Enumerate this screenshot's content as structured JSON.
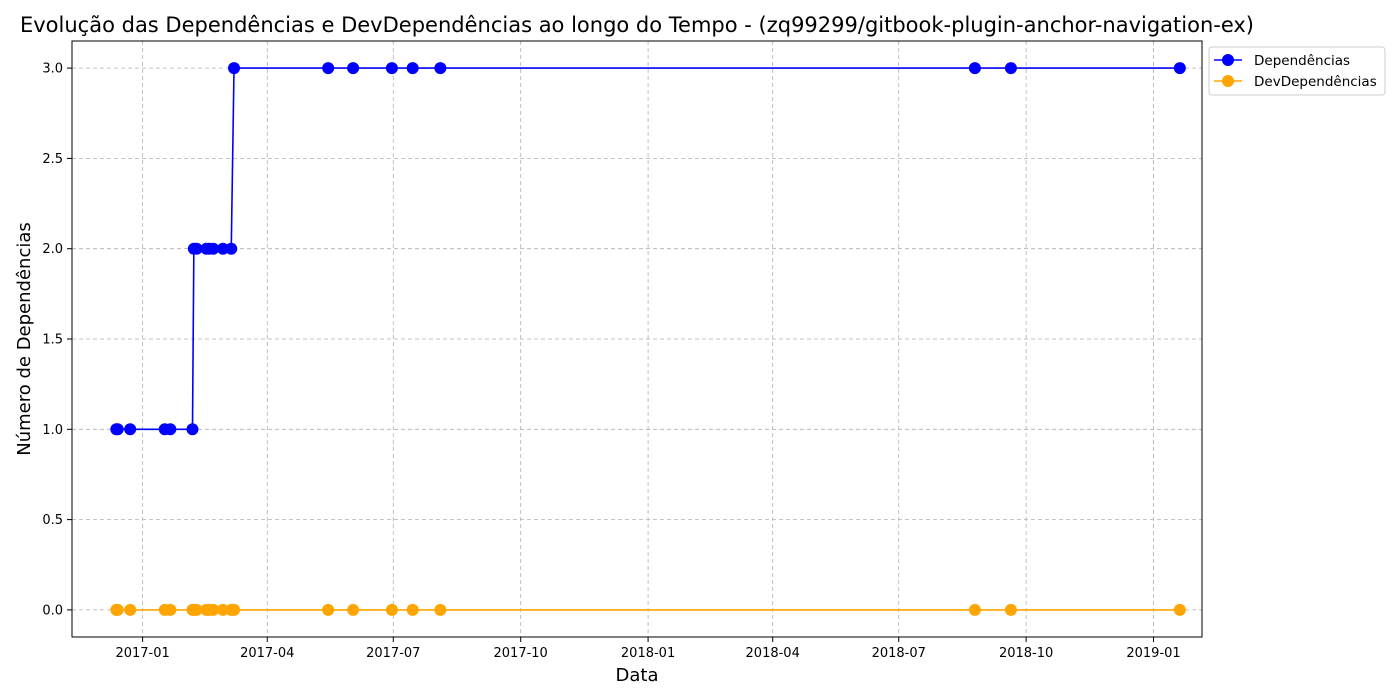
{
  "chart_data": {
    "type": "line",
    "title": "Evolução das Dependências e DevDependências ao longo do Tempo - (zq99299/gitbook-plugin-anchor-navigation-ex)",
    "xlabel": "Data",
    "ylabel": "Número de Dependências",
    "x_type": "date",
    "xlim": [
      "2016-11-11",
      "2019-02-05"
    ],
    "ylim": [
      -0.15,
      3.15
    ],
    "x_ticks": [
      {
        "date": "2017-01-01",
        "label": "2017-01"
      },
      {
        "date": "2017-04-01",
        "label": "2017-04"
      },
      {
        "date": "2017-07-01",
        "label": "2017-07"
      },
      {
        "date": "2017-10-01",
        "label": "2017-10"
      },
      {
        "date": "2018-01-01",
        "label": "2018-01"
      },
      {
        "date": "2018-04-01",
        "label": "2018-04"
      },
      {
        "date": "2018-07-01",
        "label": "2018-07"
      },
      {
        "date": "2018-10-01",
        "label": "2018-10"
      },
      {
        "date": "2019-01-01",
        "label": "2019-01"
      }
    ],
    "y_ticks": [
      {
        "value": 0.0,
        "label": "0.0"
      },
      {
        "value": 0.5,
        "label": "0.5"
      },
      {
        "value": 1.0,
        "label": "1.0"
      },
      {
        "value": 1.5,
        "label": "1.5"
      },
      {
        "value": 2.0,
        "label": "2.0"
      },
      {
        "value": 2.5,
        "label": "2.5"
      },
      {
        "value": 3.0,
        "label": "3.0"
      }
    ],
    "grid": true,
    "legend_position": "top-right",
    "x": [
      "2016-12-13",
      "2016-12-14",
      "2016-12-23",
      "2017-01-17",
      "2017-01-21",
      "2017-02-06",
      "2017-02-07",
      "2017-02-09",
      "2017-02-16",
      "2017-02-18",
      "2017-02-21",
      "2017-02-28",
      "2017-03-06",
      "2017-03-08",
      "2017-05-15",
      "2017-06-02",
      "2017-06-30",
      "2017-07-15",
      "2017-08-04",
      "2018-08-25",
      "2018-09-20",
      "2019-01-20"
    ],
    "series": [
      {
        "name": "Dependências",
        "color": "#0000ff",
        "values": [
          1,
          1,
          1,
          1,
          1,
          1,
          2,
          2,
          2,
          2,
          2,
          2,
          2,
          3,
          3,
          3,
          3,
          3,
          3,
          3,
          3,
          3
        ]
      },
      {
        "name": "DevDependências",
        "color": "#ffa500",
        "values": [
          0,
          0,
          0,
          0,
          0,
          0,
          0,
          0,
          0,
          0,
          0,
          0,
          0,
          0,
          0,
          0,
          0,
          0,
          0,
          0,
          0,
          0
        ]
      }
    ]
  }
}
